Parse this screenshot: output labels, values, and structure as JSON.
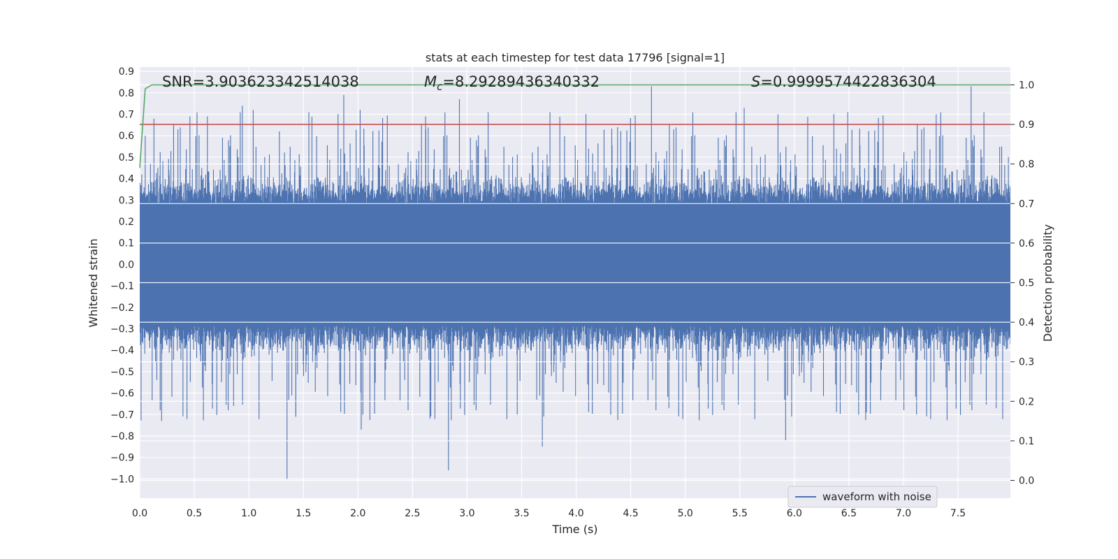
{
  "chart_data": {
    "type": "line",
    "title": "stats at each timestep for test data 17796 [signal=1]",
    "xlabel": "Time (s)",
    "ylabel": "Whitened strain",
    "y2label": "Detection probability",
    "xlim": [
      0.0,
      7.98
    ],
    "ylim": [
      -1.09,
      0.92
    ],
    "y2lim": [
      -0.045,
      1.045
    ],
    "xticks": [
      "0.0",
      "0.5",
      "1.0",
      "1.5",
      "2.0",
      "2.5",
      "3.0",
      "3.5",
      "4.0",
      "4.5",
      "5.0",
      "5.5",
      "6.0",
      "6.5",
      "7.0",
      "7.5"
    ],
    "yticks": [
      "0.9",
      "0.8",
      "0.7",
      "0.6",
      "0.5",
      "0.4",
      "0.3",
      "0.2",
      "0.1",
      "0.0",
      "−0.1",
      "−0.2",
      "−0.3",
      "−0.4",
      "−0.5",
      "−0.6",
      "−0.7",
      "−0.8",
      "−0.9",
      "−1.0"
    ],
    "y2ticks": [
      "1.0",
      "0.9",
      "0.8",
      "0.7",
      "0.6",
      "0.5",
      "0.4",
      "0.3",
      "0.2",
      "0.1",
      "0.0"
    ],
    "annotations": {
      "snr": "SNR=3.903623342514038",
      "mc_symbol": "M",
      "mc_sub": "c",
      "mc_value": "=8.29289436340332",
      "s_symbol": "S",
      "s_value": "=0.9999574422836304"
    },
    "series": [
      {
        "name": "waveform with noise",
        "axis": "left",
        "color": "#4c72b0",
        "description": "whitened strain noise with 3.9 SNR signal; envelope values",
        "core_amplitude": 0.28,
        "peaks": [
          {
            "t": 0.05,
            "v": 0.6
          },
          {
            "t": 0.13,
            "v": 0.68
          },
          {
            "t": 0.46,
            "v": 0.69
          },
          {
            "t": 0.62,
            "v": 0.69
          },
          {
            "t": 0.94,
            "v": 0.74
          },
          {
            "t": 1.04,
            "v": 0.72
          },
          {
            "t": 1.28,
            "v": 0.62
          },
          {
            "t": 1.55,
            "v": 0.71
          },
          {
            "t": 1.87,
            "v": 0.79
          },
          {
            "t": 2.02,
            "v": 0.72
          },
          {
            "t": 2.62,
            "v": 0.69
          },
          {
            "t": 2.93,
            "v": 0.77
          },
          {
            "t": 3.76,
            "v": 0.71
          },
          {
            "t": 4.38,
            "v": 0.64
          },
          {
            "t": 4.69,
            "v": 0.83
          },
          {
            "t": 5.54,
            "v": 0.73
          },
          {
            "t": 5.85,
            "v": 0.7
          },
          {
            "t": 6.49,
            "v": 0.71
          },
          {
            "t": 7.3,
            "v": 0.7
          },
          {
            "t": 7.62,
            "v": 0.83
          },
          {
            "t": 7.9,
            "v": 0.55
          }
        ],
        "troughs": [
          {
            "t": 0.2,
            "v": -0.73
          },
          {
            "t": 0.86,
            "v": -0.66
          },
          {
            "t": 1.35,
            "v": -1.0
          },
          {
            "t": 1.43,
            "v": -0.71
          },
          {
            "t": 2.03,
            "v": -0.77
          },
          {
            "t": 2.66,
            "v": -0.72
          },
          {
            "t": 2.83,
            "v": -0.96
          },
          {
            "t": 3.69,
            "v": -0.85
          },
          {
            "t": 3.46,
            "v": -0.7
          },
          {
            "t": 4.85,
            "v": -0.67
          },
          {
            "t": 5.92,
            "v": -0.82
          },
          {
            "t": 6.66,
            "v": -0.69
          },
          {
            "t": 7.12,
            "v": -0.7
          },
          {
            "t": 7.85,
            "v": -0.67
          }
        ]
      },
      {
        "name": "detection probability",
        "axis": "right",
        "color": "#55a868",
        "x": [
          0.0,
          0.05,
          0.11,
          0.2,
          1.0,
          2.0,
          3.0,
          4.0,
          5.0,
          6.0,
          7.0,
          7.98
        ],
        "values": [
          0.79,
          0.99,
          1.0,
          1.0,
          1.0,
          1.0,
          1.0,
          1.0,
          1.0,
          1.0,
          1.0,
          1.0
        ]
      },
      {
        "name": "threshold",
        "axis": "right",
        "color": "#c44e52",
        "value": 0.9
      }
    ],
    "legend": {
      "entries": [
        "waveform with noise"
      ],
      "placement": "lower-right"
    },
    "grid": true
  }
}
